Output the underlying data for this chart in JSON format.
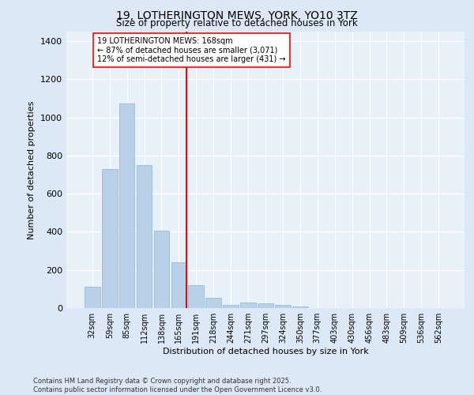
{
  "title_line1": "19, LOTHERINGTON MEWS, YORK, YO10 3TZ",
  "title_line2": "Size of property relative to detached houses in York",
  "xlabel": "Distribution of detached houses by size in York",
  "ylabel": "Number of detached properties",
  "categories": [
    "32sqm",
    "59sqm",
    "85sqm",
    "112sqm",
    "138sqm",
    "165sqm",
    "191sqm",
    "218sqm",
    "244sqm",
    "271sqm",
    "297sqm",
    "324sqm",
    "350sqm",
    "377sqm",
    "403sqm",
    "430sqm",
    "456sqm",
    "483sqm",
    "509sqm",
    "536sqm",
    "562sqm"
  ],
  "values": [
    110,
    730,
    1075,
    750,
    405,
    240,
    120,
    55,
    18,
    30,
    25,
    18,
    10,
    0,
    0,
    0,
    0,
    0,
    0,
    0,
    0
  ],
  "bar_color": "#b8d0e8",
  "bar_edgecolor": "#8ab4d4",
  "reference_line_index": 5,
  "reference_line_label": "19 LOTHERINGTON MEWS: 168sqm",
  "annotation_line2": "← 87% of detached houses are smaller (3,071)",
  "annotation_line3": "12% of semi-detached houses are larger (431) →",
  "ylim": [
    0,
    1450
  ],
  "yticks": [
    0,
    200,
    400,
    600,
    800,
    1000,
    1200,
    1400
  ],
  "footer_line1": "Contains HM Land Registry data © Crown copyright and database right 2025.",
  "footer_line2": "Contains public sector information licensed under the Open Government Licence v3.0.",
  "bg_color": "#dce8f5",
  "plot_bg_color": "#e8f0f8"
}
